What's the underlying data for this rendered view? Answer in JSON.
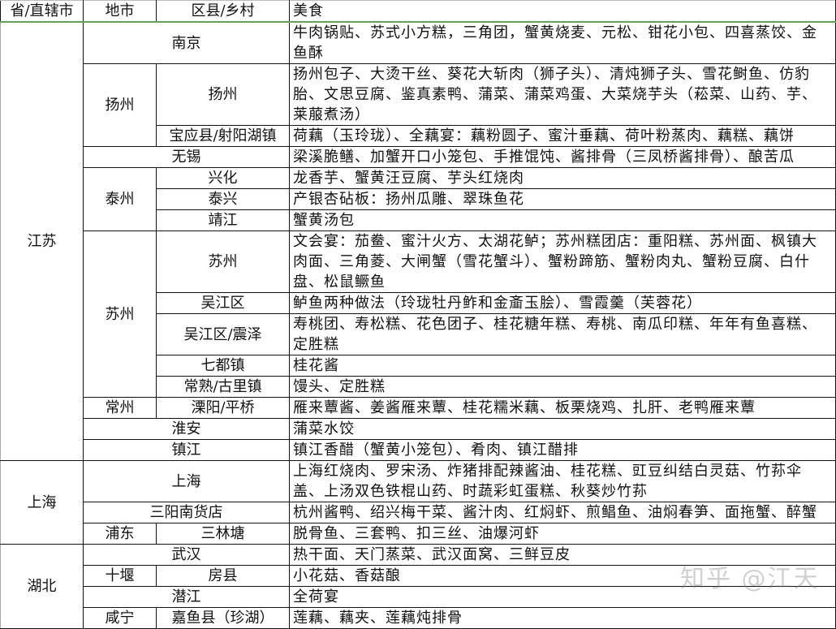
{
  "header": [
    "省/直辖市",
    "地市",
    "区县/乡村",
    "美食"
  ],
  "provinces": [
    "江苏",
    "上海",
    "湖北"
  ],
  "rows": [
    {
      "city": "南京",
      "food": "牛肉锅贴、苏式小方糕，三角团，蟹黄烧麦、元松、钳花小包、四喜蒸饺、金鱼酥"
    },
    {
      "city": "扬州",
      "district": "扬州",
      "food": "扬州包子、大烫干丝、葵花大斩肉（狮子头）、清炖狮子头、雪花鲥鱼、仿豹胎、文思豆腐、鉴真素鸭、蒲菜、蒲菜鸡蛋、大菜烧芋头（菘菜、山药、芋、莱菔煮汤）"
    },
    {
      "district": "宝应县/射阳湖镇",
      "food": "荷藕（玉玲珑）、全藕宴：藕粉圆子、蜜汁垂藕、荷叶粉蒸肉、藕糕、藕饼"
    },
    {
      "city": "无锡",
      "food": "梁溪脆鳝、加蟹开口小笼包、手推馄饨、酱排骨（三凤桥酱排骨）、酿苦瓜"
    },
    {
      "city": "泰州",
      "district": "兴化",
      "food": "龙香芋、蟹黄汪豆腐、芋头红烧肉"
    },
    {
      "district": "泰兴",
      "food": "产银杏砧板：扬州瓜雕、翠珠鱼花"
    },
    {
      "district": "靖江",
      "food": "蟹黄汤包"
    },
    {
      "city": "苏州",
      "district": "苏州",
      "food": "文会宴：茄鲞、蜜汁火方、太湖花鲈；苏州糕团店：重阳糕、苏州面、枫镇大肉面、三角菱、大闸蟹（雪花蟹斗）、蟹粉蹄筋、蟹粉肉丸、蟹粉豆腐、白什盘、松鼠鳜鱼"
    },
    {
      "district": "吴江区",
      "food": "鲈鱼两种做法（玲珑牡丹鲊和金齑玉脍）、雪霞羹（芙蓉花）"
    },
    {
      "district": "吴江区/震泽",
      "food": "寿桃团、寿松糕、花色团子、桂花糖年糕、寿桃、南瓜印糕、年年有鱼喜糕、定胜糕"
    },
    {
      "district": "七都镇",
      "food": "桂花酱"
    },
    {
      "district": "常熟/古里镇",
      "food": "馒头、定胜糕"
    },
    {
      "city": "常州",
      "district": "溧阳/平桥",
      "food": "雁来蕈酱、姜酱雁来蕈、桂花糯米藕、板栗烧鸡、扎肝、老鸭雁来蕈"
    },
    {
      "city": "淮安",
      "food": "蒲菜水饺"
    },
    {
      "city": "镇江",
      "food": "镇江香醋（蟹黄小笼包）、肴肉、镇江醋排"
    },
    {
      "city": "上海",
      "food": "上海红烧肉、罗宋汤、炸猪排配辣酱油、桂花糕、豇豆纠结白灵菇、竹荪伞盖、上汤双色铁棍山药、时蔬彩虹蛋糕、秋葵炒竹荪"
    },
    {
      "city": "三阳南货店",
      "food": "杭州酱鸭、绍兴梅干菜、酱汁肉、红焖虾、煎鲳鱼、油焖春笋、面拖蟹、醉蟹"
    },
    {
      "city": "浦东",
      "district": "三林塘",
      "food": "脱骨鱼、三套鸭、扣三丝、油爆河虾"
    },
    {
      "city": "武汉",
      "food": "热干面、天门蒸菜、武汉面窝、三鲜豆皮"
    },
    {
      "city": "十堰",
      "district": "房县",
      "food": "小花菇、香菇酿"
    },
    {
      "city": "潜江",
      "food": "全荷宴"
    },
    {
      "city": "咸宁",
      "district": "嘉鱼县（珍湖）",
      "food": "莲藕、藕夹、莲藕炖排骨"
    }
  ],
  "watermark": "知乎 @江天"
}
